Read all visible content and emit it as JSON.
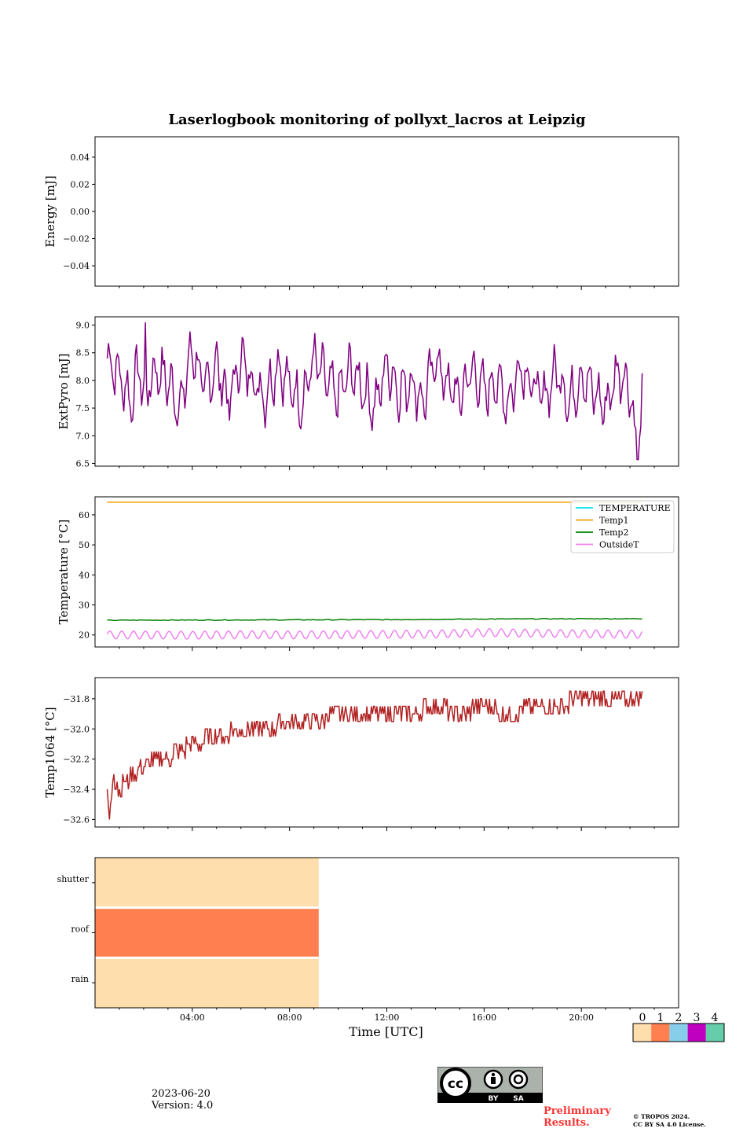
{
  "figure_title": "Laserlogbook monitoring of pollyxt_lacros at Leipzig",
  "date": "2023-06-20",
  "version": "Version: 4.0",
  "preliminary": [
    "Preliminary",
    "Results."
  ],
  "copyright": [
    "© TROPOS 2024.",
    "CC BY SA 4.0 License."
  ],
  "cc_badge": {
    "by": "BY",
    "sa": "SA",
    "cc": "cc"
  },
  "chart_data": [
    {
      "type": "line",
      "ylabel": "Energy [mJ]",
      "ylim": [
        -0.055,
        0.055
      ],
      "yticks": [
        "0.04",
        "0.02",
        "0.00",
        "−0.02",
        "−0.04"
      ],
      "ytick_values": [
        0.04,
        0.02,
        0.0,
        -0.02,
        -0.04
      ],
      "series": [],
      "note": "no data plotted"
    },
    {
      "type": "line",
      "ylabel": "ExtPyro [mJ]",
      "ylim": [
        6.45,
        9.15
      ],
      "yticks": [
        "9.0",
        "8.5",
        "8.0",
        "7.5",
        "7.0",
        "6.5"
      ],
      "ytick_values": [
        9.0,
        8.5,
        8.0,
        7.5,
        7.0,
        6.5
      ],
      "color": "#800080",
      "x_hours": [
        0.5,
        1.0,
        1.5,
        1.8,
        2.0,
        2.5,
        3.0,
        3.5,
        4.0,
        4.5,
        5.0,
        5.5,
        6.0,
        6.5,
        7.0,
        7.5,
        8.0,
        8.5,
        9.0,
        9.5,
        10.0,
        10.5,
        11.0,
        11.5,
        12.0,
        12.5,
        13.0,
        13.5,
        14.0,
        14.5,
        15.0,
        15.5,
        16.0,
        16.5,
        17.0,
        17.5,
        18.0,
        18.5,
        19.0,
        19.5,
        20.0,
        20.5,
        21.0,
        21.5,
        22.0,
        22.3,
        22.5
      ],
      "y": [
        8.4,
        8.1,
        7.6,
        8.3,
        7.7,
        8.2,
        8.0,
        7.5,
        8.6,
        7.8,
        8.3,
        7.6,
        8.4,
        8.0,
        7.7,
        8.3,
        7.9,
        7.6,
        8.4,
        8.0,
        7.7,
        8.2,
        7.9,
        7.5,
        8.3,
        7.8,
        8.0,
        7.6,
        8.4,
        7.9,
        7.7,
        8.2,
        7.8,
        8.0,
        7.6,
        8.3,
        7.9,
        7.7,
        8.2,
        7.6,
        8.1,
        7.8,
        7.5,
        8.2,
        7.9,
        6.6,
        7.6
      ],
      "ymax_observed": 9.05,
      "ymin_observed": 6.57
    },
    {
      "type": "line",
      "ylabel": "Temperature [°C]",
      "ylim": [
        16,
        66
      ],
      "yticks": [
        "60",
        "50",
        "40",
        "30",
        "20"
      ],
      "ytick_values": [
        60,
        50,
        40,
        30,
        20
      ],
      "legend_position": "top-right",
      "series": [
        {
          "name": "TEMPERATURE",
          "color": "#00e5ee",
          "x_hours": [],
          "values": []
        },
        {
          "name": "Temp1",
          "color": "#f0a000",
          "x_hours": [
            0.5,
            22.5
          ],
          "values": [
            64.2,
            64.2
          ]
        },
        {
          "name": "Temp2",
          "color": "#008000",
          "x_hours": [
            0.5,
            6,
            12,
            16,
            20,
            22.5
          ],
          "values": [
            24.9,
            25.0,
            25.1,
            25.3,
            25.4,
            25.4
          ]
        },
        {
          "name": "OutsideT",
          "color": "#ee82ee",
          "x_hours": [
            0.5,
            2,
            4,
            6,
            8,
            10,
            12,
            14,
            16,
            18,
            20,
            22.5
          ],
          "values": [
            20.0,
            20.0,
            19.9,
            20.1,
            20.0,
            20.1,
            20.2,
            20.3,
            20.8,
            20.6,
            20.4,
            20.2
          ],
          "oscillation_amplitude": 1.3
        }
      ]
    },
    {
      "type": "line",
      "ylabel": "Temp1064 [°C]",
      "ylim": [
        -32.65,
        -31.66
      ],
      "yticks": [
        "−31.8",
        "−32.0",
        "−32.2",
        "−32.4",
        "−32.6"
      ],
      "ytick_values": [
        -31.8,
        -32.0,
        -32.2,
        -32.4,
        -32.6
      ],
      "color": "#b22222",
      "x_hours": [
        0.5,
        0.6,
        0.75,
        1.0,
        1.5,
        2.0,
        2.5,
        3.0,
        3.5,
        4.0,
        5.0,
        6.0,
        7.0,
        8.0,
        9.0,
        10.0,
        11.0,
        12.0,
        13.0,
        14.0,
        15.0,
        16.0,
        17.0,
        18.0,
        19.0,
        20.0,
        21.0,
        22.0,
        22.5
      ],
      "y": [
        -32.4,
        -32.6,
        -32.3,
        -32.4,
        -32.3,
        -32.25,
        -32.2,
        -32.2,
        -32.15,
        -32.1,
        -32.05,
        -32.0,
        -32.0,
        -31.95,
        -31.95,
        -31.9,
        -31.9,
        -31.9,
        -31.9,
        -31.85,
        -31.9,
        -31.85,
        -31.9,
        -31.85,
        -31.85,
        -31.8,
        -31.8,
        -31.8,
        -31.8
      ]
    },
    {
      "type": "heatmap",
      "rows": [
        "shutter",
        "roof",
        "rain"
      ],
      "row_values": [
        0,
        1,
        0
      ],
      "x_extent_hours": [
        0,
        9.2
      ],
      "xlabel": "Time [UTC]",
      "xlim_hours": [
        0,
        24
      ],
      "xticks": [
        "04:00",
        "08:00",
        "12:00",
        "16:00",
        "20:00"
      ],
      "xtick_hours": [
        4,
        8,
        12,
        16,
        20
      ],
      "colorbar": {
        "labels": [
          "0",
          "1",
          "2",
          "3",
          "4"
        ],
        "colors": [
          "#ffdead",
          "#ff7f50",
          "#87ceeb",
          "#c000c0",
          "#66cdaa"
        ]
      }
    }
  ]
}
